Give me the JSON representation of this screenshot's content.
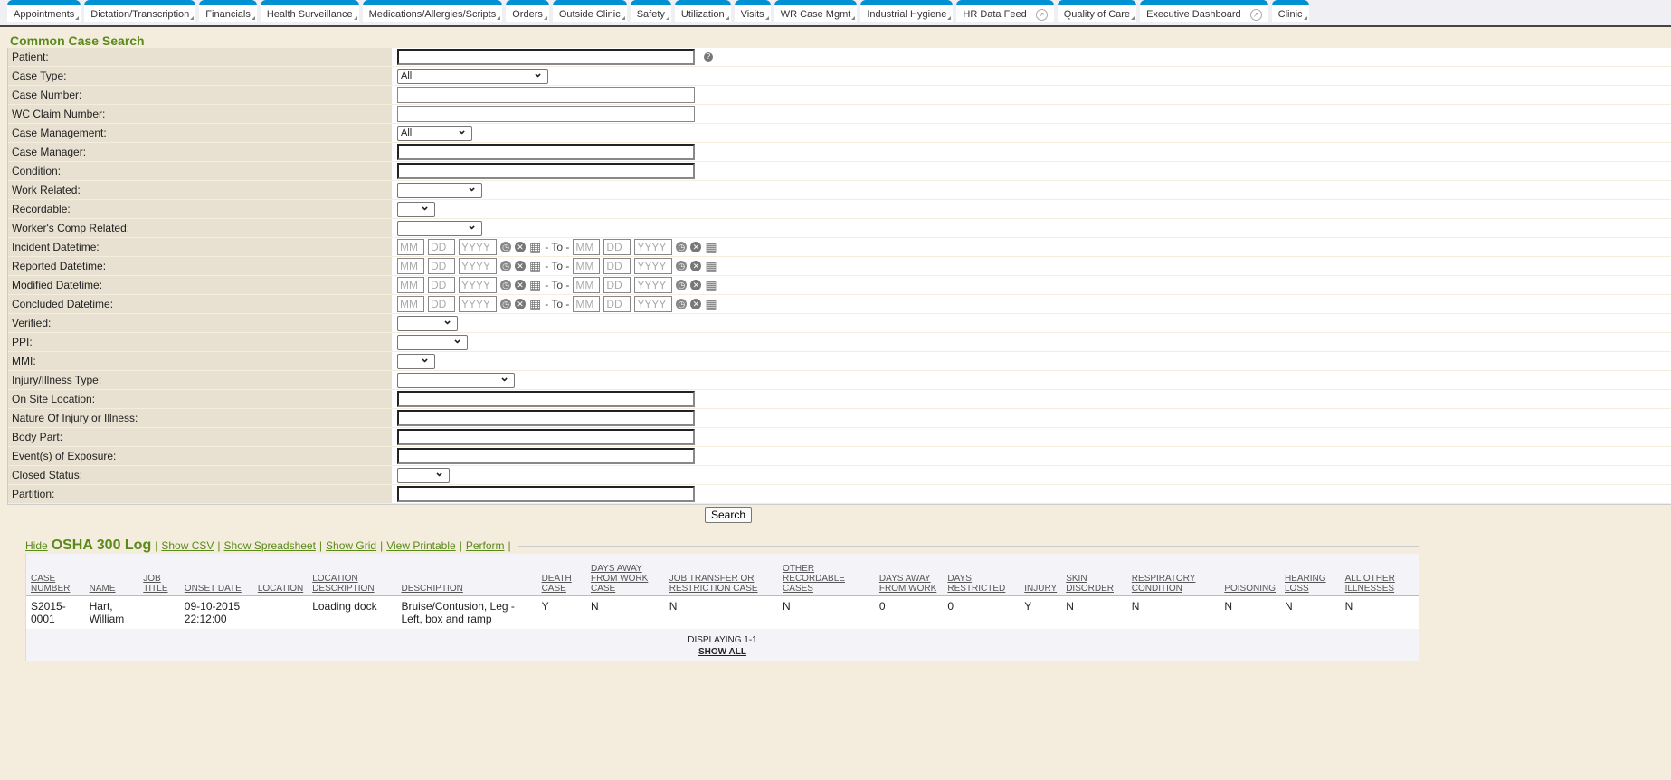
{
  "tabs": [
    "Appointments",
    "Dictation/Transcription",
    "Financials",
    "Health Surveillance",
    "Medications/Allergies/Scripts",
    "Orders",
    "Outside Clinic",
    "Safety",
    "Utilization",
    "Visits",
    "WR Case Mgmt",
    "Industrial Hygiene",
    "HR Data Feed",
    "Quality of Care",
    "Executive Dashboard",
    "Clinic"
  ],
  "search": {
    "title": "Common Case Search",
    "button": "Search",
    "fields": [
      {
        "label": "Patient:",
        "type": "ta",
        "help": true
      },
      {
        "label": "Case Type:",
        "type": "sel",
        "value": "All"
      },
      {
        "label": "Case Number:",
        "type": "inp"
      },
      {
        "label": "WC Claim Number:",
        "type": "inp"
      },
      {
        "label": "Case Management:",
        "type": "sel",
        "value": "All"
      },
      {
        "label": "Case Manager:",
        "type": "ta"
      },
      {
        "label": "Condition:",
        "type": "ta"
      },
      {
        "label": "Work Related:",
        "type": "sel",
        "value": ""
      },
      {
        "label": "Recordable:",
        "type": "sel",
        "value": ""
      },
      {
        "label": "Worker's Comp Related:",
        "type": "sel",
        "value": ""
      },
      {
        "label": "Incident Datetime:",
        "type": "date"
      },
      {
        "label": "Reported Datetime:",
        "type": "date"
      },
      {
        "label": "Modified Datetime:",
        "type": "date"
      },
      {
        "label": "Concluded Datetime:",
        "type": "date"
      },
      {
        "label": "Verified:",
        "type": "sel",
        "value": ""
      },
      {
        "label": "PPI:",
        "type": "sel",
        "value": ""
      },
      {
        "label": "MMI:",
        "type": "sel",
        "value": ""
      },
      {
        "label": "Injury/Illness Type:",
        "type": "sel",
        "value": ""
      },
      {
        "label": "On Site Location:",
        "type": "ta"
      },
      {
        "label": "Nature Of Injury or Illness:",
        "type": "ta"
      },
      {
        "label": "Body Part:",
        "type": "ta"
      },
      {
        "label": "Event(s) of Exposure:",
        "type": "ta"
      },
      {
        "label": "Closed Status:",
        "type": "sel",
        "value": ""
      },
      {
        "label": "Partition:",
        "type": "ta"
      }
    ],
    "date_placeholders": {
      "mm": "MM",
      "dd": "DD",
      "yyyy": "YYYY",
      "to": "- To -"
    }
  },
  "osha": {
    "hide": "Hide",
    "title": "OSHA 300 Log",
    "links": [
      "Show CSV",
      "Show Spreadsheet",
      "Show Grid",
      "View Printable",
      "Perform"
    ],
    "columns": [
      "CASE NUMBER",
      "NAME",
      "JOB TITLE",
      "ONSET DATE",
      "LOCATION",
      "LOCATION DESCRIPTION",
      "DESCRIPTION",
      "DEATH CASE",
      "DAYS AWAY FROM WORK CASE",
      "JOB TRANSFER OR RESTRICTION CASE",
      "OTHER RECORDABLE CASES",
      "DAYS AWAY FROM WORK",
      "DAYS RESTRICTED",
      "INJURY",
      "SKIN DISORDER",
      "RESPIRATORY CONDITION",
      "POISONING",
      "HEARING LOSS",
      "ALL OTHER ILLNESSES"
    ],
    "rows": [
      [
        "S2015-0001",
        "Hart, William",
        "",
        "09-10-2015 22:12:00",
        "",
        "Loading dock",
        "Bruise/Contusion, Leg - Left, box and ramp",
        "Y",
        "N",
        "N",
        "N",
        "0",
        "0",
        "Y",
        "N",
        "N",
        "N",
        "N",
        "N"
      ]
    ],
    "displaying": "DISPLAYING 1-1",
    "show_all": "SHOW ALL"
  }
}
